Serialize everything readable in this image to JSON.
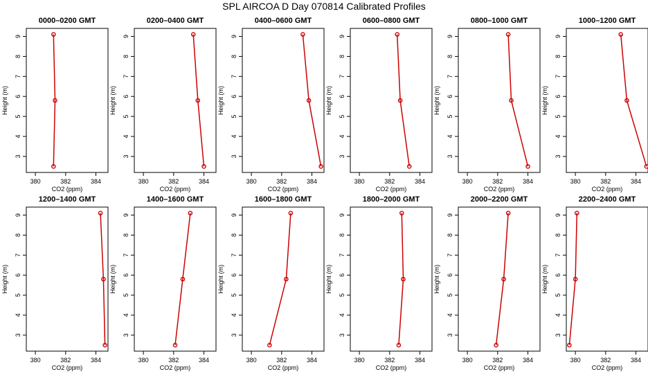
{
  "figure": {
    "title": "SPL AIRCOA D  Day 070814  Calibrated Profiles",
    "series_color": "#cc0000"
  },
  "chart_data": [
    {
      "type": "line",
      "title": "0000–0200 GMT",
      "xlabel": "CO2 (ppm)",
      "ylabel": "Height (m)",
      "xlim": [
        379.4,
        384.8
      ],
      "ylim": [
        2.2,
        9.4
      ],
      "xticks": [
        380,
        382,
        384
      ],
      "yticks": [
        3,
        4,
        5,
        6,
        7,
        8,
        9
      ],
      "x": [
        381.2,
        381.3,
        381.2
      ],
      "y": [
        2.5,
        5.8,
        9.1
      ]
    },
    {
      "type": "line",
      "title": "0200–0400 GMT",
      "xlabel": "CO2 (ppm)",
      "ylabel": "Height (m)",
      "xlim": [
        379.4,
        384.8
      ],
      "ylim": [
        2.2,
        9.4
      ],
      "xticks": [
        380,
        382,
        384
      ],
      "yticks": [
        3,
        4,
        5,
        6,
        7,
        8,
        9
      ],
      "x": [
        384.0,
        383.6,
        383.3
      ],
      "y": [
        2.5,
        5.8,
        9.1
      ]
    },
    {
      "type": "line",
      "title": "0400–0600 GMT",
      "xlabel": "CO2 (ppm)",
      "ylabel": "Height (m)",
      "xlim": [
        379.4,
        384.8
      ],
      "ylim": [
        2.2,
        9.4
      ],
      "xticks": [
        380,
        382,
        384
      ],
      "yticks": [
        3,
        4,
        5,
        6,
        7,
        8,
        9
      ],
      "x": [
        384.6,
        383.8,
        383.4
      ],
      "y": [
        2.5,
        5.8,
        9.1
      ]
    },
    {
      "type": "line",
      "title": "0600–0800 GMT",
      "xlabel": "CO2 (ppm)",
      "ylabel": "Height (m)",
      "xlim": [
        379.4,
        384.8
      ],
      "ylim": [
        2.2,
        9.4
      ],
      "xticks": [
        380,
        382,
        384
      ],
      "yticks": [
        3,
        4,
        5,
        6,
        7,
        8,
        9
      ],
      "x": [
        383.3,
        382.7,
        382.5
      ],
      "y": [
        2.5,
        5.8,
        9.1
      ]
    },
    {
      "type": "line",
      "title": "0800–1000 GMT",
      "xlabel": "CO2 (ppm)",
      "ylabel": "Height (m)",
      "xlim": [
        379.4,
        384.8
      ],
      "ylim": [
        2.2,
        9.4
      ],
      "xticks": [
        380,
        382,
        384
      ],
      "yticks": [
        3,
        4,
        5,
        6,
        7,
        8,
        9
      ],
      "x": [
        384.0,
        382.9,
        382.7
      ],
      "y": [
        2.5,
        5.8,
        9.1
      ]
    },
    {
      "type": "line",
      "title": "1000–1200 GMT",
      "xlabel": "CO2 (ppm)",
      "ylabel": "Height (m)",
      "xlim": [
        379.4,
        384.8
      ],
      "ylim": [
        2.2,
        9.4
      ],
      "xticks": [
        380,
        382,
        384
      ],
      "yticks": [
        3,
        4,
        5,
        6,
        7,
        8,
        9
      ],
      "x": [
        384.7,
        383.4,
        383.0
      ],
      "y": [
        2.5,
        5.8,
        9.1
      ]
    },
    {
      "type": "line",
      "title": "1200–1400 GMT",
      "xlabel": "CO2 (ppm)",
      "ylabel": "Height (m)",
      "xlim": [
        379.4,
        384.8
      ],
      "ylim": [
        2.2,
        9.4
      ],
      "xticks": [
        380,
        382,
        384
      ],
      "yticks": [
        3,
        4,
        5,
        6,
        7,
        8,
        9
      ],
      "x": [
        384.6,
        384.5,
        384.3
      ],
      "y": [
        2.5,
        5.8,
        9.1
      ]
    },
    {
      "type": "line",
      "title": "1400–1600 GMT",
      "xlabel": "CO2 (ppm)",
      "ylabel": "Height (m)",
      "xlim": [
        379.4,
        384.8
      ],
      "ylim": [
        2.2,
        9.4
      ],
      "xticks": [
        380,
        382,
        384
      ],
      "yticks": [
        3,
        4,
        5,
        6,
        7,
        8,
        9
      ],
      "x": [
        382.1,
        382.6,
        383.1
      ],
      "y": [
        2.5,
        5.8,
        9.1
      ]
    },
    {
      "type": "line",
      "title": "1600–1800 GMT",
      "xlabel": "CO2 (ppm)",
      "ylabel": "Height (m)",
      "xlim": [
        379.4,
        384.8
      ],
      "ylim": [
        2.2,
        9.4
      ],
      "xticks": [
        380,
        382,
        384
      ],
      "yticks": [
        3,
        4,
        5,
        6,
        7,
        8,
        9
      ],
      "x": [
        381.2,
        382.3,
        382.6
      ],
      "y": [
        2.5,
        5.8,
        9.1
      ]
    },
    {
      "type": "line",
      "title": "1800–2000 GMT",
      "xlabel": "CO2 (ppm)",
      "ylabel": "Height (m)",
      "xlim": [
        379.4,
        384.8
      ],
      "ylim": [
        2.2,
        9.4
      ],
      "xticks": [
        380,
        382,
        384
      ],
      "yticks": [
        3,
        4,
        5,
        6,
        7,
        8,
        9
      ],
      "x": [
        382.6,
        382.9,
        382.8
      ],
      "y": [
        2.5,
        5.8,
        9.1
      ]
    },
    {
      "type": "line",
      "title": "2000–2200 GMT",
      "xlabel": "CO2 (ppm)",
      "ylabel": "Height (m)",
      "xlim": [
        379.4,
        384.8
      ],
      "ylim": [
        2.2,
        9.4
      ],
      "xticks": [
        380,
        382,
        384
      ],
      "yticks": [
        3,
        4,
        5,
        6,
        7,
        8,
        9
      ],
      "x": [
        381.9,
        382.4,
        382.7
      ],
      "y": [
        2.5,
        5.8,
        9.1
      ]
    },
    {
      "type": "line",
      "title": "2200–2400 GMT",
      "xlabel": "CO2 (ppm)",
      "ylabel": "Height (m)",
      "xlim": [
        379.4,
        384.8
      ],
      "ylim": [
        2.2,
        9.4
      ],
      "xticks": [
        380,
        382,
        384
      ],
      "yticks": [
        3,
        4,
        5,
        6,
        7,
        8,
        9
      ],
      "x": [
        379.6,
        380.0,
        380.1
      ],
      "y": [
        2.5,
        5.8,
        9.1
      ]
    }
  ]
}
